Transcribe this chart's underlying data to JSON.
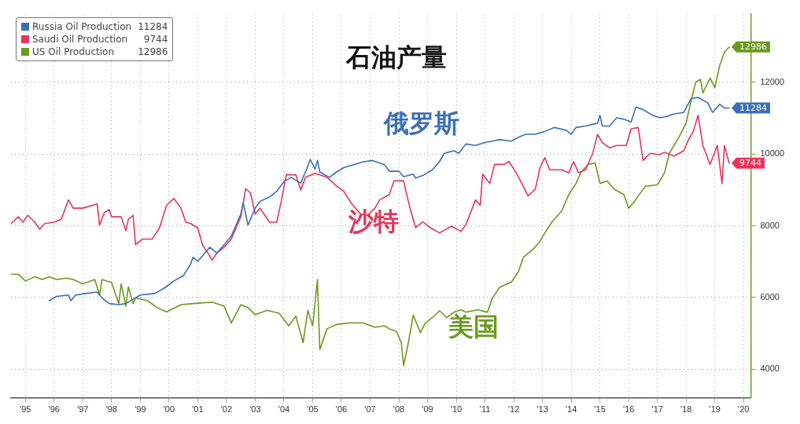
{
  "chart_data": {
    "type": "line",
    "title": "石油产量",
    "annotations": [
      "俄罗斯",
      "沙特",
      "美国"
    ],
    "xlim": [
      "1995-01",
      "2020-10"
    ],
    "xticks": [
      {
        "value": "1995-07",
        "label": "'95"
      },
      {
        "value": "1996-07",
        "label": "'96"
      },
      {
        "value": "1997-07",
        "label": "'97"
      },
      {
        "value": "1998-07",
        "label": "'98"
      },
      {
        "value": "1999-07",
        "label": "'99"
      },
      {
        "value": "2000-07",
        "label": "'00"
      },
      {
        "value": "2001-07",
        "label": "'01"
      },
      {
        "value": "2002-07",
        "label": "'02"
      },
      {
        "value": "2003-07",
        "label": "'03"
      },
      {
        "value": "2004-07",
        "label": "'04"
      },
      {
        "value": "2005-07",
        "label": "'05"
      },
      {
        "value": "2006-07",
        "label": "'06"
      },
      {
        "value": "2007-07",
        "label": "'07"
      },
      {
        "value": "2008-07",
        "label": "'08"
      },
      {
        "value": "2009-07",
        "label": "'09"
      },
      {
        "value": "2010-07",
        "label": "'10"
      },
      {
        "value": "2011-07",
        "label": "'11"
      },
      {
        "value": "2012-07",
        "label": "'12"
      },
      {
        "value": "2013-07",
        "label": "'13"
      },
      {
        "value": "2014-07",
        "label": "'14"
      },
      {
        "value": "2015-07",
        "label": "'15"
      },
      {
        "value": "2016-07",
        "label": "'16"
      },
      {
        "value": "2017-07",
        "label": "'17"
      },
      {
        "value": "2018-07",
        "label": "'18"
      },
      {
        "value": "2019-07",
        "label": "'19"
      },
      {
        "value": "2020-07",
        "label": "'20"
      }
    ],
    "ylim": [
      3200,
      13900
    ],
    "yticks": [
      4000,
      6000,
      8000,
      10000,
      12000
    ],
    "grid": true,
    "legend": "top left",
    "series": [
      {
        "name": "Russia Oil Production",
        "color": "#3a6fb5",
        "x": [
          "1996-05",
          "1996-08",
          "1997-01",
          "1997-02",
          "1997-04",
          "1997-08",
          "1998-01",
          "1998-03",
          "1998-06",
          "1998-10",
          "1999-01",
          "1999-04",
          "1999-07",
          "2000-01",
          "2000-05",
          "2000-09",
          "2001-01",
          "2001-04",
          "2001-05",
          "2001-07",
          "2001-10",
          "2001-12",
          "2002-03",
          "2002-06",
          "2002-09",
          "2003-01",
          "2003-02",
          "2003-04",
          "2003-07",
          "2003-09",
          "2004-01",
          "2004-04",
          "2004-07",
          "2004-10",
          "2005-02",
          "2005-05",
          "2005-06",
          "2005-08",
          "2005-09",
          "2005-10",
          "2006-02",
          "2006-05",
          "2006-08",
          "2007-04",
          "2007-08",
          "2008-01",
          "2008-03",
          "2008-07",
          "2008-09",
          "2009-01",
          "2009-02",
          "2009-05",
          "2009-09",
          "2009-12",
          "2010-02",
          "2010-06",
          "2010-08",
          "2010-11",
          "2011-03",
          "2011-07",
          "2011-10",
          "2012-01",
          "2012-06",
          "2012-09",
          "2012-12",
          "2013-04",
          "2013-08",
          "2013-12",
          "2014-05",
          "2014-07",
          "2014-09",
          "2015-01",
          "2015-06",
          "2015-07",
          "2015-08",
          "2015-11",
          "2016-02",
          "2016-05",
          "2016-08",
          "2016-10",
          "2017-01",
          "2017-05",
          "2017-08",
          "2017-11",
          "2018-02",
          "2018-06",
          "2018-09",
          "2018-12",
          "2019-04",
          "2019-06",
          "2019-09",
          "2019-11",
          "2020-01"
        ],
        "values": [
          5910,
          6030,
          6070,
          5910,
          6070,
          6110,
          6150,
          5990,
          5830,
          5800,
          5830,
          5950,
          6070,
          6110,
          6260,
          6460,
          6610,
          6930,
          7120,
          7010,
          7240,
          7400,
          7240,
          7470,
          7710,
          8330,
          8640,
          8020,
          8490,
          8680,
          8800,
          8960,
          9230,
          9350,
          9190,
          9660,
          9850,
          9580,
          9820,
          9500,
          9350,
          9500,
          9620,
          9780,
          9820,
          9700,
          9520,
          9520,
          9370,
          9440,
          9330,
          9400,
          9560,
          9790,
          10020,
          10090,
          10020,
          10280,
          10240,
          10320,
          10360,
          10400,
          10360,
          10470,
          10550,
          10550,
          10630,
          10740,
          10660,
          10550,
          10740,
          10780,
          10860,
          11080,
          10780,
          10780,
          11010,
          10970,
          10890,
          11310,
          11240,
          11080,
          11010,
          11050,
          11120,
          11160,
          11540,
          11580,
          11430,
          11160,
          11390,
          11280,
          11284
        ],
        "value_labels": [
          null,
          null,
          null,
          null,
          null,
          null,
          null,
          null,
          null,
          null,
          null,
          null,
          null,
          null,
          null,
          null,
          null,
          null,
          null,
          null,
          null,
          null,
          null,
          null,
          null,
          null,
          null,
          null,
          null,
          null,
          null,
          null,
          null,
          null,
          null,
          null,
          null,
          null,
          null,
          null,
          null,
          null,
          null,
          null,
          null,
          null,
          null,
          null,
          null,
          null,
          null,
          null,
          null,
          null,
          null,
          null,
          null,
          null,
          null,
          null,
          null,
          null,
          null,
          null,
          null,
          null,
          null,
          null,
          null,
          null,
          null,
          null,
          null,
          null,
          null,
          null,
          null,
          null,
          null,
          null,
          null,
          null,
          null,
          null,
          null,
          null,
          null,
          null,
          null,
          null,
          null,
          null,
          "11284"
        ]
      },
      {
        "name": "Saudi Oil Production",
        "color": "#e8345a",
        "x": [
          "1995-01",
          "1995-04",
          "1995-06",
          "1995-08",
          "1995-11",
          "1996-01",
          "1996-03",
          "1996-07",
          "1996-10",
          "1997-01",
          "1997-03",
          "1997-07",
          "1997-11",
          "1998-01",
          "1998-02",
          "1998-04",
          "1998-06",
          "1998-07",
          "1998-11",
          "1999-01",
          "1999-02",
          "1999-04",
          "1999-05",
          "1999-08",
          "1999-12",
          "2000-03",
          "2000-06",
          "2000-09",
          "2000-12",
          "2001-02",
          "2001-04",
          "2001-07",
          "2001-09",
          "2001-12",
          "2002-01",
          "2002-03",
          "2002-06",
          "2002-09",
          "2003-01",
          "2003-03",
          "2003-05",
          "2003-07",
          "2003-09",
          "2004-01",
          "2004-04",
          "2004-06",
          "2004-08",
          "2004-12",
          "2005-02",
          "2005-04",
          "2005-08",
          "2006-01",
          "2006-05",
          "2006-08",
          "2006-11",
          "2007-03",
          "2007-06",
          "2007-09",
          "2007-11",
          "2008-03",
          "2008-05",
          "2008-09",
          "2008-10",
          "2008-12",
          "2009-02",
          "2009-05",
          "2009-08",
          "2009-12",
          "2010-05",
          "2010-09",
          "2010-11",
          "2011-03",
          "2011-05",
          "2011-06",
          "2011-09",
          "2011-11",
          "2012-03",
          "2012-05",
          "2012-08",
          "2012-11",
          "2013-01",
          "2013-04",
          "2013-06",
          "2013-08",
          "2013-10",
          "2014-03",
          "2014-06",
          "2014-08",
          "2014-10",
          "2015-01",
          "2015-04",
          "2015-06",
          "2015-08",
          "2015-11",
          "2016-02",
          "2016-06",
          "2016-08",
          "2016-11",
          "2017-01",
          "2017-04",
          "2017-08",
          "2017-10",
          "2018-02",
          "2018-06",
          "2018-08",
          "2018-10",
          "2018-12",
          "2019-02",
          "2019-05",
          "2019-08",
          "2019-10",
          "2019-11",
          "2020-01"
        ],
        "values": [
          8060,
          8250,
          8100,
          8290,
          8100,
          7900,
          8060,
          8100,
          8180,
          8720,
          8490,
          8490,
          8570,
          8610,
          8020,
          8370,
          8450,
          8250,
          8250,
          7860,
          8180,
          8290,
          7470,
          7630,
          7630,
          7940,
          8570,
          8760,
          8490,
          8100,
          8060,
          7940,
          7470,
          7160,
          7040,
          7240,
          7400,
          7630,
          8250,
          9030,
          8920,
          8330,
          8490,
          8100,
          8100,
          8720,
          9420,
          9420,
          9000,
          9350,
          9460,
          9350,
          9110,
          8960,
          8640,
          8330,
          8290,
          8490,
          8720,
          8870,
          9250,
          9250,
          8950,
          8410,
          7950,
          8110,
          7950,
          7800,
          7990,
          7840,
          8030,
          8720,
          8570,
          9440,
          9180,
          9710,
          9710,
          9790,
          9480,
          9100,
          8830,
          9020,
          9630,
          9900,
          9560,
          9560,
          9480,
          9790,
          9480,
          9560,
          10020,
          10550,
          10320,
          10170,
          10240,
          10240,
          10700,
          10740,
          9820,
          10020,
          9980,
          10050,
          9940,
          10090,
          10400,
          10630,
          11080,
          10240,
          9710,
          10240,
          9180,
          10240,
          9744
        ],
        "value_labels": [
          null,
          null,
          null,
          null,
          null,
          null,
          null,
          null,
          null,
          null,
          null,
          null,
          null,
          null,
          null,
          null,
          null,
          null,
          null,
          null,
          null,
          null,
          null,
          null,
          null,
          null,
          null,
          null,
          null,
          null,
          null,
          null,
          null,
          null,
          null,
          null,
          null,
          null,
          null,
          null,
          null,
          null,
          null,
          null,
          null,
          null,
          null,
          null,
          null,
          null,
          null,
          null,
          null,
          null,
          null,
          null,
          null,
          null,
          null,
          null,
          null,
          null,
          null,
          null,
          null,
          null,
          null,
          null,
          null,
          null,
          null,
          null,
          null,
          null,
          null,
          null,
          null,
          null,
          null,
          null,
          null,
          null,
          null,
          null,
          null,
          null,
          null,
          null,
          null,
          null,
          null,
          null,
          null,
          null,
          null,
          null,
          null,
          null,
          null,
          null,
          null,
          null,
          null,
          null,
          null,
          null,
          null,
          null,
          null,
          null,
          null,
          null,
          "9744"
        ]
      },
      {
        "name": "US Oil Production",
        "color": "#6a9a1f",
        "x": [
          "1995-01",
          "1995-04",
          "1995-07",
          "1995-11",
          "1996-02",
          "1996-05",
          "1996-08",
          "1996-12",
          "1997-03",
          "1997-07",
          "1997-12",
          "1998-02",
          "1998-03",
          "1998-07",
          "1998-10",
          "1998-11",
          "1999-01",
          "1999-02",
          "1999-04",
          "1999-05",
          "1999-10",
          "2000-02",
          "2000-06",
          "2000-12",
          "2001-05",
          "2002-01",
          "2002-06",
          "2002-09",
          "2003-01",
          "2003-04",
          "2003-07",
          "2003-12",
          "2004-05",
          "2004-09",
          "2004-12",
          "2005-03",
          "2005-05",
          "2005-07",
          "2005-09",
          "2005-10",
          "2006-01",
          "2006-05",
          "2006-10",
          "2007-04",
          "2007-09",
          "2008-01",
          "2008-03",
          "2008-06",
          "2008-08",
          "2008-09",
          "2008-11",
          "2009-01",
          "2009-04",
          "2009-06",
          "2009-09",
          "2009-12",
          "2010-03",
          "2010-06",
          "2010-09",
          "2010-11",
          "2011-04",
          "2011-08",
          "2011-10",
          "2012-01",
          "2012-06",
          "2012-09",
          "2012-11",
          "2013-03",
          "2013-06",
          "2013-08",
          "2013-11",
          "2014-03",
          "2014-06",
          "2014-09",
          "2014-11",
          "2015-02",
          "2015-05",
          "2015-07",
          "2015-10",
          "2016-01",
          "2016-05",
          "2016-07",
          "2016-09",
          "2016-11",
          "2017-02",
          "2017-07",
          "2017-10",
          "2017-12",
          "2018-04",
          "2018-07",
          "2018-09",
          "2018-11",
          "2019-01",
          "2019-02",
          "2019-05",
          "2019-07",
          "2019-09",
          "2019-11",
          "2020-01"
        ],
        "values": [
          6650,
          6650,
          6460,
          6580,
          6500,
          6580,
          6500,
          6540,
          6500,
          6380,
          6500,
          6070,
          6500,
          6420,
          5830,
          6380,
          5760,
          6300,
          5830,
          5990,
          5910,
          5720,
          5600,
          5800,
          5830,
          5870,
          5760,
          5290,
          5800,
          5720,
          5520,
          5640,
          5560,
          5210,
          5480,
          4740,
          5640,
          5210,
          6500,
          4550,
          5130,
          5250,
          5290,
          5290,
          5170,
          5210,
          5130,
          5050,
          4750,
          4100,
          4750,
          5510,
          5020,
          5280,
          5440,
          5630,
          5440,
          5590,
          5660,
          5590,
          5660,
          5590,
          5970,
          6280,
          6430,
          6730,
          7120,
          7340,
          7570,
          7800,
          8110,
          8410,
          8870,
          9180,
          9480,
          9710,
          9750,
          9180,
          9250,
          9020,
          8870,
          8490,
          8640,
          8830,
          9100,
          9140,
          9480,
          10020,
          10470,
          10860,
          11470,
          12000,
          12080,
          11700,
          12120,
          11850,
          12460,
          12840,
          12986
        ],
        "value_labels": [
          null,
          null,
          null,
          null,
          null,
          null,
          null,
          null,
          null,
          null,
          null,
          null,
          null,
          null,
          null,
          null,
          null,
          null,
          null,
          null,
          null,
          null,
          null,
          null,
          null,
          null,
          null,
          null,
          null,
          null,
          null,
          null,
          null,
          null,
          null,
          null,
          null,
          null,
          null,
          null,
          null,
          null,
          null,
          null,
          null,
          null,
          null,
          null,
          null,
          null,
          null,
          null,
          null,
          null,
          null,
          null,
          null,
          null,
          null,
          null,
          null,
          null,
          null,
          null,
          null,
          null,
          null,
          null,
          null,
          null,
          null,
          null,
          null,
          null,
          null,
          null,
          null,
          null,
          null,
          null,
          null,
          null,
          null,
          null,
          null,
          null,
          null,
          null,
          null,
          null,
          null,
          null,
          null,
          null,
          null,
          null,
          null,
          null,
          "12986"
        ]
      }
    ]
  }
}
